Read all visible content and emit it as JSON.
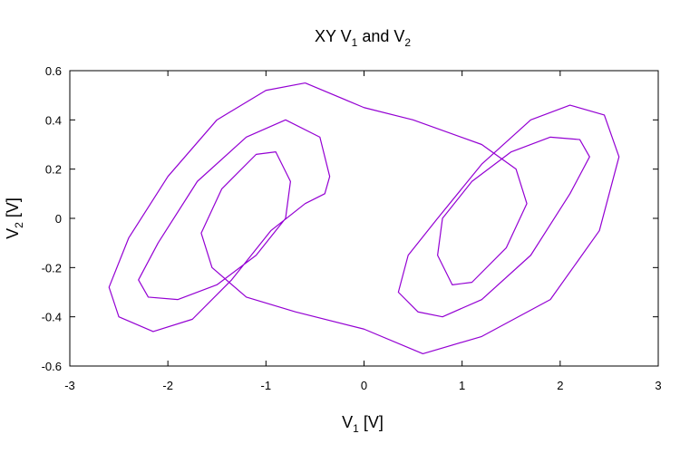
{
  "chart_data": {
    "type": "line",
    "title": [
      "XY V",
      "1",
      " and V",
      "2"
    ],
    "x_label": [
      "V",
      "1",
      " [V]"
    ],
    "y_label": [
      "V",
      "2",
      " [V]"
    ],
    "xlim": [
      -3,
      3
    ],
    "xticks": [
      -3,
      -2,
      -1,
      0,
      1,
      2,
      3
    ],
    "ylim": [
      -0.6,
      0.6
    ],
    "yticks": [
      -0.6,
      -0.4,
      -0.2,
      0,
      0.2,
      0.4,
      0.6
    ],
    "grid": false,
    "series": [
      {
        "color": "#9400d3",
        "x": [
          -0.6,
          -1.0,
          -1.5,
          -2.0,
          -2.4,
          -2.6,
          -2.5,
          -2.15,
          -1.75,
          -1.35,
          -0.95,
          -0.6,
          -0.4,
          -0.35,
          -0.45,
          -0.8,
          -1.2,
          -1.7,
          -2.1,
          -2.3,
          -2.2,
          -1.9,
          -1.5,
          -1.1,
          -0.8,
          -0.75,
          -0.9,
          -1.1,
          -1.45,
          -1.66,
          -1.55,
          -1.2,
          -0.7,
          0,
          0.6,
          1.2,
          1.9,
          2.4,
          2.6,
          2.45,
          2.1,
          1.7,
          1.2,
          0.75,
          0.45,
          0.35,
          0.55,
          0.8,
          1.2,
          1.7,
          2.1,
          2.3,
          2.2,
          1.9,
          1.5,
          1.1,
          0.8,
          0.75,
          0.9,
          1.1,
          1.45,
          1.66,
          1.55,
          1.2,
          0.5,
          0,
          -0.6
        ],
        "y": [
          0.55,
          0.52,
          0.4,
          0.17,
          -0.08,
          -0.28,
          -0.4,
          -0.46,
          -0.41,
          -0.25,
          -0.05,
          0.06,
          0.1,
          0.17,
          0.33,
          0.4,
          0.33,
          0.15,
          -0.1,
          -0.25,
          -0.32,
          -0.33,
          -0.27,
          -0.15,
          0.0,
          0.15,
          0.27,
          0.26,
          0.12,
          -0.06,
          -0.2,
          -0.32,
          -0.38,
          -0.45,
          -0.55,
          -0.48,
          -0.33,
          -0.05,
          0.25,
          0.42,
          0.46,
          0.4,
          0.22,
          0.0,
          -0.15,
          -0.3,
          -0.38,
          -0.4,
          -0.33,
          -0.15,
          0.1,
          0.25,
          0.32,
          0.33,
          0.27,
          0.15,
          0.0,
          -0.15,
          -0.27,
          -0.26,
          -0.12,
          0.06,
          0.2,
          0.3,
          0.4,
          0.45,
          0.55
        ]
      }
    ]
  }
}
